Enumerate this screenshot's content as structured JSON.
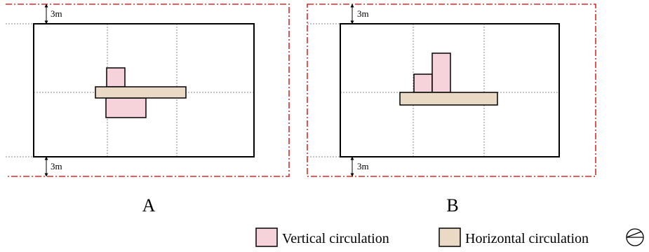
{
  "plans": [
    {
      "label": "A",
      "setback_top": "3m",
      "setback_bottom": "3m"
    },
    {
      "label": "B",
      "setback_top": "3m",
      "setback_bottom": "3m"
    }
  ],
  "legend": {
    "vertical": "Vertical circulation",
    "horizontal": "Horizontal circulation"
  },
  "colors": {
    "vertical_fill": "#f6d3da",
    "horizontal_fill": "#ead9c4",
    "boundary": "#d92b2b"
  },
  "icons": {
    "compass": "north-arrow-icon"
  }
}
